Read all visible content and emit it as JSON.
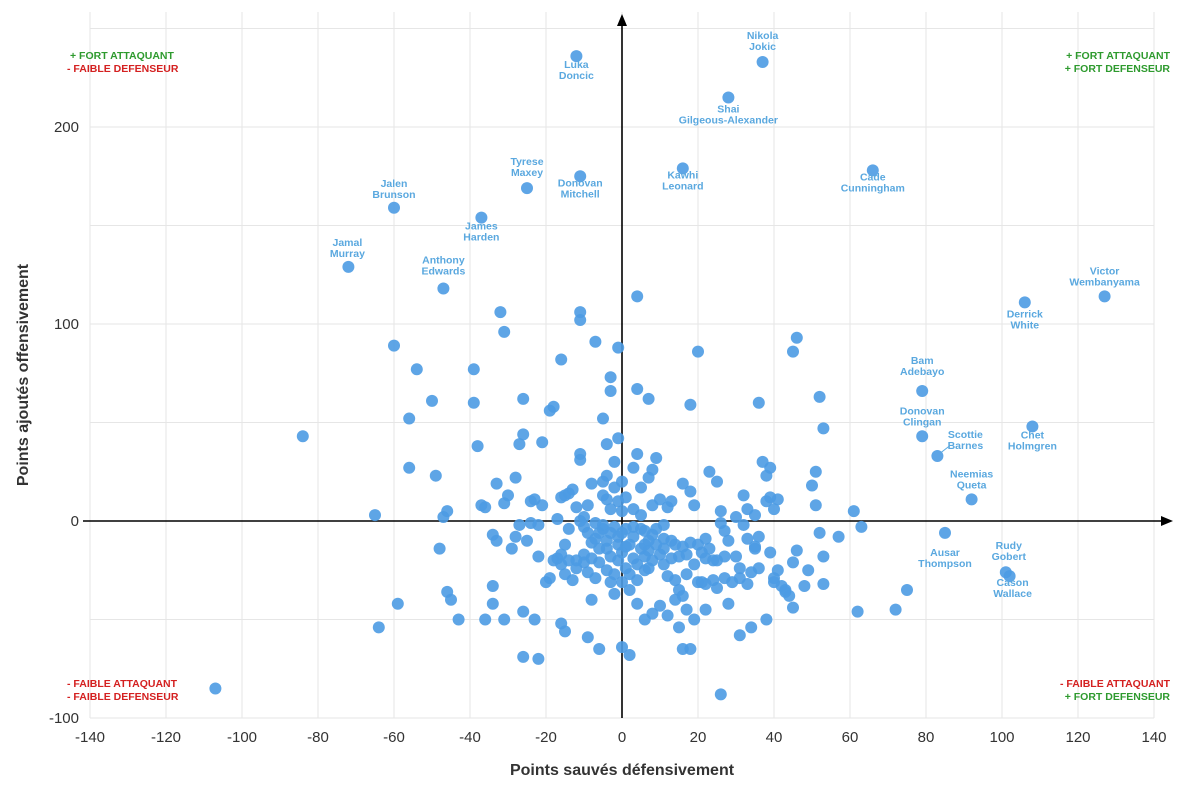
{
  "colors": {
    "point": "#4c9be3",
    "label": "#5aa8df",
    "grid": "#e6e6e6",
    "axis": "#000000",
    "green": "#2e9a2e",
    "red": "#d42020"
  },
  "corners": {
    "top_left": [
      "+ FORT ATTAQUANT",
      "- FAIBLE DEFENSEUR"
    ],
    "top_right": [
      "+ FORT ATTAQUANT",
      "+ FORT DEFENSEUR"
    ],
    "bottom_left": [
      "- FAIBLE ATTAQUANT",
      "- FAIBLE DEFENSEUR"
    ],
    "bottom_right": [
      "- FAIBLE ATTAQUANT",
      "+ FORT DEFENSEUR"
    ]
  },
  "chart_data": {
    "type": "scatter",
    "xlabel": "Points sauvés défensivement",
    "ylabel": "Points ajoutés offensivement",
    "xlim": [
      -140,
      140
    ],
    "ylim": [
      -100,
      250
    ],
    "xticks": [
      -140,
      -120,
      -100,
      -80,
      -60,
      -40,
      -20,
      0,
      20,
      40,
      60,
      80,
      100,
      120,
      140
    ],
    "yticks": [
      -100,
      0,
      100,
      200
    ],
    "grid": true,
    "labeled_points": [
      {
        "label": [
          "Nikola",
          "Jokic"
        ],
        "x": 37,
        "y": 233
      },
      {
        "label": [
          "Luka",
          "Doncic"
        ],
        "x": -12,
        "y": 236
      },
      {
        "label": [
          "Shai",
          "Gilgeous-Alexander"
        ],
        "x": 28,
        "y": 215
      },
      {
        "label": [
          "Tyrese",
          "Maxey"
        ],
        "x": -25,
        "y": 169
      },
      {
        "label": [
          "Donovan",
          "Mitchell"
        ],
        "x": -11,
        "y": 175
      },
      {
        "label": [
          "Kawhi",
          "Leonard"
        ],
        "x": 16,
        "y": 179
      },
      {
        "label": [
          "Cade",
          "Cunningham"
        ],
        "x": 66,
        "y": 178
      },
      {
        "label": [
          "Jalen",
          "Brunson"
        ],
        "x": -60,
        "y": 159
      },
      {
        "label": [
          "James",
          "Harden"
        ],
        "x": -37,
        "y": 154
      },
      {
        "label": [
          "Jamal",
          "Murray"
        ],
        "x": -72,
        "y": 129
      },
      {
        "label": [
          "Anthony",
          "Edwards"
        ],
        "x": -47,
        "y": 118
      },
      {
        "label": [
          "Victor",
          "Wembanyama"
        ],
        "x": 127,
        "y": 114
      },
      {
        "label": [
          "Derrick",
          "White"
        ],
        "x": 106,
        "y": 111
      },
      {
        "label": [
          "Bam",
          "Adebayo"
        ],
        "x": 79,
        "y": 66
      },
      {
        "label": [
          "Donovan",
          "Clingan"
        ],
        "x": 79,
        "y": 43
      },
      {
        "label": [
          "Scottie",
          "Barnes"
        ],
        "x": 83,
        "y": 33
      },
      {
        "label": [
          "Chet",
          "Holmgren"
        ],
        "x": 108,
        "y": 48
      },
      {
        "label": [
          "Neemias",
          "Queta"
        ],
        "x": 92,
        "y": 11
      },
      {
        "label": [
          "Ausar",
          "Thompson"
        ],
        "x": 85,
        "y": -6
      },
      {
        "label": [
          "Rudy",
          "Gobert"
        ],
        "x": 101,
        "y": -26
      },
      {
        "label": [
          "Cason",
          "Wallace"
        ],
        "x": 102,
        "y": -28
      }
    ],
    "points": [
      [
        -107,
        -85
      ],
      [
        -84,
        43
      ],
      [
        -65,
        3
      ],
      [
        -64,
        -54
      ],
      [
        -60,
        89
      ],
      [
        -59,
        -42
      ],
      [
        -56,
        52
      ],
      [
        -56,
        27
      ],
      [
        -54,
        77
      ],
      [
        -50,
        61
      ],
      [
        -49,
        23
      ],
      [
        -48,
        -14
      ],
      [
        -47,
        2
      ],
      [
        -46,
        5
      ],
      [
        -46,
        -36
      ],
      [
        -45,
        -40
      ],
      [
        -43,
        -50
      ],
      [
        -39,
        60
      ],
      [
        -39,
        77
      ],
      [
        -38,
        38
      ],
      [
        -37,
        8
      ],
      [
        -36,
        -50
      ],
      [
        -36,
        7
      ],
      [
        -34,
        -33
      ],
      [
        -34,
        -42
      ],
      [
        -34,
        -7
      ],
      [
        -33,
        -10
      ],
      [
        -33,
        19
      ],
      [
        -32,
        106
      ],
      [
        -31,
        96
      ],
      [
        -31,
        -50
      ],
      [
        -31,
        9
      ],
      [
        -30,
        13
      ],
      [
        -29,
        -14
      ],
      [
        -28,
        -8
      ],
      [
        -28,
        22
      ],
      [
        -27,
        39
      ],
      [
        -27,
        -2
      ],
      [
        -26,
        44
      ],
      [
        -26,
        62
      ],
      [
        -26,
        -46
      ],
      [
        -26,
        -69
      ],
      [
        -25,
        -10
      ],
      [
        -24,
        -1
      ],
      [
        -24,
        10
      ],
      [
        -23,
        -50
      ],
      [
        -23,
        11
      ],
      [
        -22,
        -70
      ],
      [
        -22,
        -2
      ],
      [
        -22,
        -18
      ],
      [
        -21,
        40
      ],
      [
        -21,
        8
      ],
      [
        -20,
        -31
      ],
      [
        -19,
        56
      ],
      [
        -19,
        -29
      ],
      [
        -18,
        -20
      ],
      [
        -18,
        58
      ],
      [
        -17,
        -19
      ],
      [
        -17,
        1
      ],
      [
        -16,
        82
      ],
      [
        -16,
        -52
      ],
      [
        -16,
        -17
      ],
      [
        -16,
        -22
      ],
      [
        -16,
        12
      ],
      [
        -15,
        -27
      ],
      [
        -15,
        -56
      ],
      [
        -15,
        -12
      ],
      [
        -15,
        13
      ],
      [
        -14,
        -20
      ],
      [
        -14,
        -4
      ],
      [
        -14,
        14
      ],
      [
        -13,
        -30
      ],
      [
        -13,
        16
      ],
      [
        -12,
        -24
      ],
      [
        -12,
        -20
      ],
      [
        -12,
        7
      ],
      [
        -11,
        102
      ],
      [
        -11,
        106
      ],
      [
        -11,
        34
      ],
      [
        -11,
        31
      ],
      [
        -11,
        0
      ],
      [
        -10,
        -21
      ],
      [
        -10,
        -17
      ],
      [
        -10,
        2
      ],
      [
        -10,
        -3
      ],
      [
        -9,
        -26
      ],
      [
        -9,
        -59
      ],
      [
        -9,
        -6
      ],
      [
        -9,
        8
      ],
      [
        -8,
        19
      ],
      [
        -8,
        -40
      ],
      [
        -8,
        -11
      ],
      [
        -8,
        -19
      ],
      [
        -7,
        -9
      ],
      [
        -7,
        91
      ],
      [
        -7,
        -29
      ],
      [
        -7,
        -1
      ],
      [
        -6,
        -65
      ],
      [
        -6,
        -14
      ],
      [
        -6,
        -6
      ],
      [
        -6,
        -21
      ],
      [
        -5,
        52
      ],
      [
        -5,
        20
      ],
      [
        -5,
        13
      ],
      [
        -5,
        -4
      ],
      [
        -5,
        -2
      ],
      [
        -4,
        -14
      ],
      [
        -4,
        -10
      ],
      [
        -4,
        -25
      ],
      [
        -4,
        23
      ],
      [
        -4,
        39
      ],
      [
        -4,
        11
      ],
      [
        -3,
        73
      ],
      [
        -3,
        66
      ],
      [
        -3,
        -31
      ],
      [
        -3,
        -6
      ],
      [
        -3,
        -18
      ],
      [
        -3,
        6
      ],
      [
        -2,
        -3
      ],
      [
        -2,
        17
      ],
      [
        -2,
        30
      ],
      [
        -2,
        -37
      ],
      [
        -2,
        -27
      ],
      [
        -1,
        -12
      ],
      [
        -1,
        88
      ],
      [
        -1,
        -20
      ],
      [
        -1,
        -8
      ],
      [
        -1,
        10
      ],
      [
        -1,
        42
      ],
      [
        0,
        -64
      ],
      [
        0,
        -31
      ],
      [
        0,
        -16
      ],
      [
        0,
        -6
      ],
      [
        0,
        5
      ],
      [
        0,
        20
      ],
      [
        1,
        -24
      ],
      [
        1,
        -4
      ],
      [
        1,
        -13
      ],
      [
        1,
        12
      ],
      [
        2,
        -68
      ],
      [
        2,
        -35
      ],
      [
        2,
        -12
      ],
      [
        2,
        -27
      ],
      [
        3,
        -19
      ],
      [
        3,
        -8
      ],
      [
        3,
        -3
      ],
      [
        3,
        6
      ],
      [
        3,
        27
      ],
      [
        4,
        114
      ],
      [
        4,
        67
      ],
      [
        4,
        34
      ],
      [
        4,
        -22
      ],
      [
        4,
        -42
      ],
      [
        4,
        -30
      ],
      [
        5,
        -14
      ],
      [
        5,
        -4
      ],
      [
        5,
        3
      ],
      [
        5,
        17
      ],
      [
        6,
        -50
      ],
      [
        6,
        -12
      ],
      [
        6,
        -25
      ],
      [
        6,
        -5
      ],
      [
        6,
        -18
      ],
      [
        7,
        62
      ],
      [
        7,
        -10
      ],
      [
        7,
        22
      ],
      [
        7,
        -15
      ],
      [
        7,
        -24
      ],
      [
        8,
        -47
      ],
      [
        8,
        26
      ],
      [
        8,
        -7
      ],
      [
        8,
        -20
      ],
      [
        8,
        8
      ],
      [
        9,
        -4
      ],
      [
        9,
        -12
      ],
      [
        9,
        32
      ],
      [
        10,
        -43
      ],
      [
        10,
        -17
      ],
      [
        10,
        11
      ],
      [
        11,
        -9
      ],
      [
        11,
        -22
      ],
      [
        11,
        -14
      ],
      [
        11,
        -2
      ],
      [
        12,
        -28
      ],
      [
        12,
        -48
      ],
      [
        12,
        7
      ],
      [
        13,
        -19
      ],
      [
        13,
        10
      ],
      [
        13,
        -10
      ],
      [
        14,
        -40
      ],
      [
        14,
        -30
      ],
      [
        14,
        -12
      ],
      [
        15,
        -54
      ],
      [
        15,
        -35
      ],
      [
        15,
        -18
      ],
      [
        16,
        -38
      ],
      [
        16,
        -65
      ],
      [
        16,
        -13
      ],
      [
        16,
        19
      ],
      [
        17,
        -17
      ],
      [
        17,
        -45
      ],
      [
        17,
        -27
      ],
      [
        18,
        -65
      ],
      [
        18,
        59
      ],
      [
        18,
        -11
      ],
      [
        18,
        15
      ],
      [
        19,
        8
      ],
      [
        19,
        -50
      ],
      [
        19,
        -22
      ],
      [
        20,
        86
      ],
      [
        20,
        -31
      ],
      [
        20,
        -12
      ],
      [
        21,
        -16
      ],
      [
        21,
        -31
      ],
      [
        22,
        -45
      ],
      [
        22,
        -32
      ],
      [
        22,
        -19
      ],
      [
        22,
        -9
      ],
      [
        23,
        25
      ],
      [
        23,
        -14
      ],
      [
        24,
        -20
      ],
      [
        24,
        -30
      ],
      [
        25,
        -34
      ],
      [
        25,
        20
      ],
      [
        25,
        -20
      ],
      [
        26,
        -1
      ],
      [
        26,
        -88
      ],
      [
        26,
        5
      ],
      [
        27,
        -29
      ],
      [
        27,
        -18
      ],
      [
        27,
        -5
      ],
      [
        28,
        -42
      ],
      [
        28,
        -10
      ],
      [
        29,
        -31
      ],
      [
        30,
        -18
      ],
      [
        30,
        2
      ],
      [
        31,
        -58
      ],
      [
        31,
        -29
      ],
      [
        31,
        -24
      ],
      [
        32,
        -2
      ],
      [
        32,
        13
      ],
      [
        33,
        -32
      ],
      [
        33,
        6
      ],
      [
        33,
        -9
      ],
      [
        34,
        -54
      ],
      [
        34,
        -26
      ],
      [
        35,
        -14
      ],
      [
        35,
        3
      ],
      [
        35,
        -13
      ],
      [
        36,
        -8
      ],
      [
        36,
        60
      ],
      [
        36,
        -24
      ],
      [
        37,
        30
      ],
      [
        38,
        -50
      ],
      [
        38,
        10
      ],
      [
        38,
        23
      ],
      [
        39,
        12
      ],
      [
        39,
        27
      ],
      [
        39,
        -16
      ],
      [
        40,
        -29
      ],
      [
        40,
        -31
      ],
      [
        40,
        6
      ],
      [
        41,
        -25
      ],
      [
        41,
        11
      ],
      [
        42,
        -33
      ],
      [
        43,
        -35
      ],
      [
        43,
        -36
      ],
      [
        44,
        -38
      ],
      [
        45,
        -44
      ],
      [
        45,
        -21
      ],
      [
        45,
        86
      ],
      [
        46,
        93
      ],
      [
        46,
        -15
      ],
      [
        48,
        -33
      ],
      [
        49,
        -25
      ],
      [
        50,
        18
      ],
      [
        51,
        8
      ],
      [
        51,
        25
      ],
      [
        52,
        63
      ],
      [
        52,
        -6
      ],
      [
        53,
        47
      ],
      [
        53,
        -18
      ],
      [
        53,
        -32
      ],
      [
        57,
        -8
      ],
      [
        61,
        5
      ],
      [
        62,
        -46
      ],
      [
        63,
        -3
      ],
      [
        72,
        -45
      ],
      [
        75,
        -35
      ]
    ]
  }
}
